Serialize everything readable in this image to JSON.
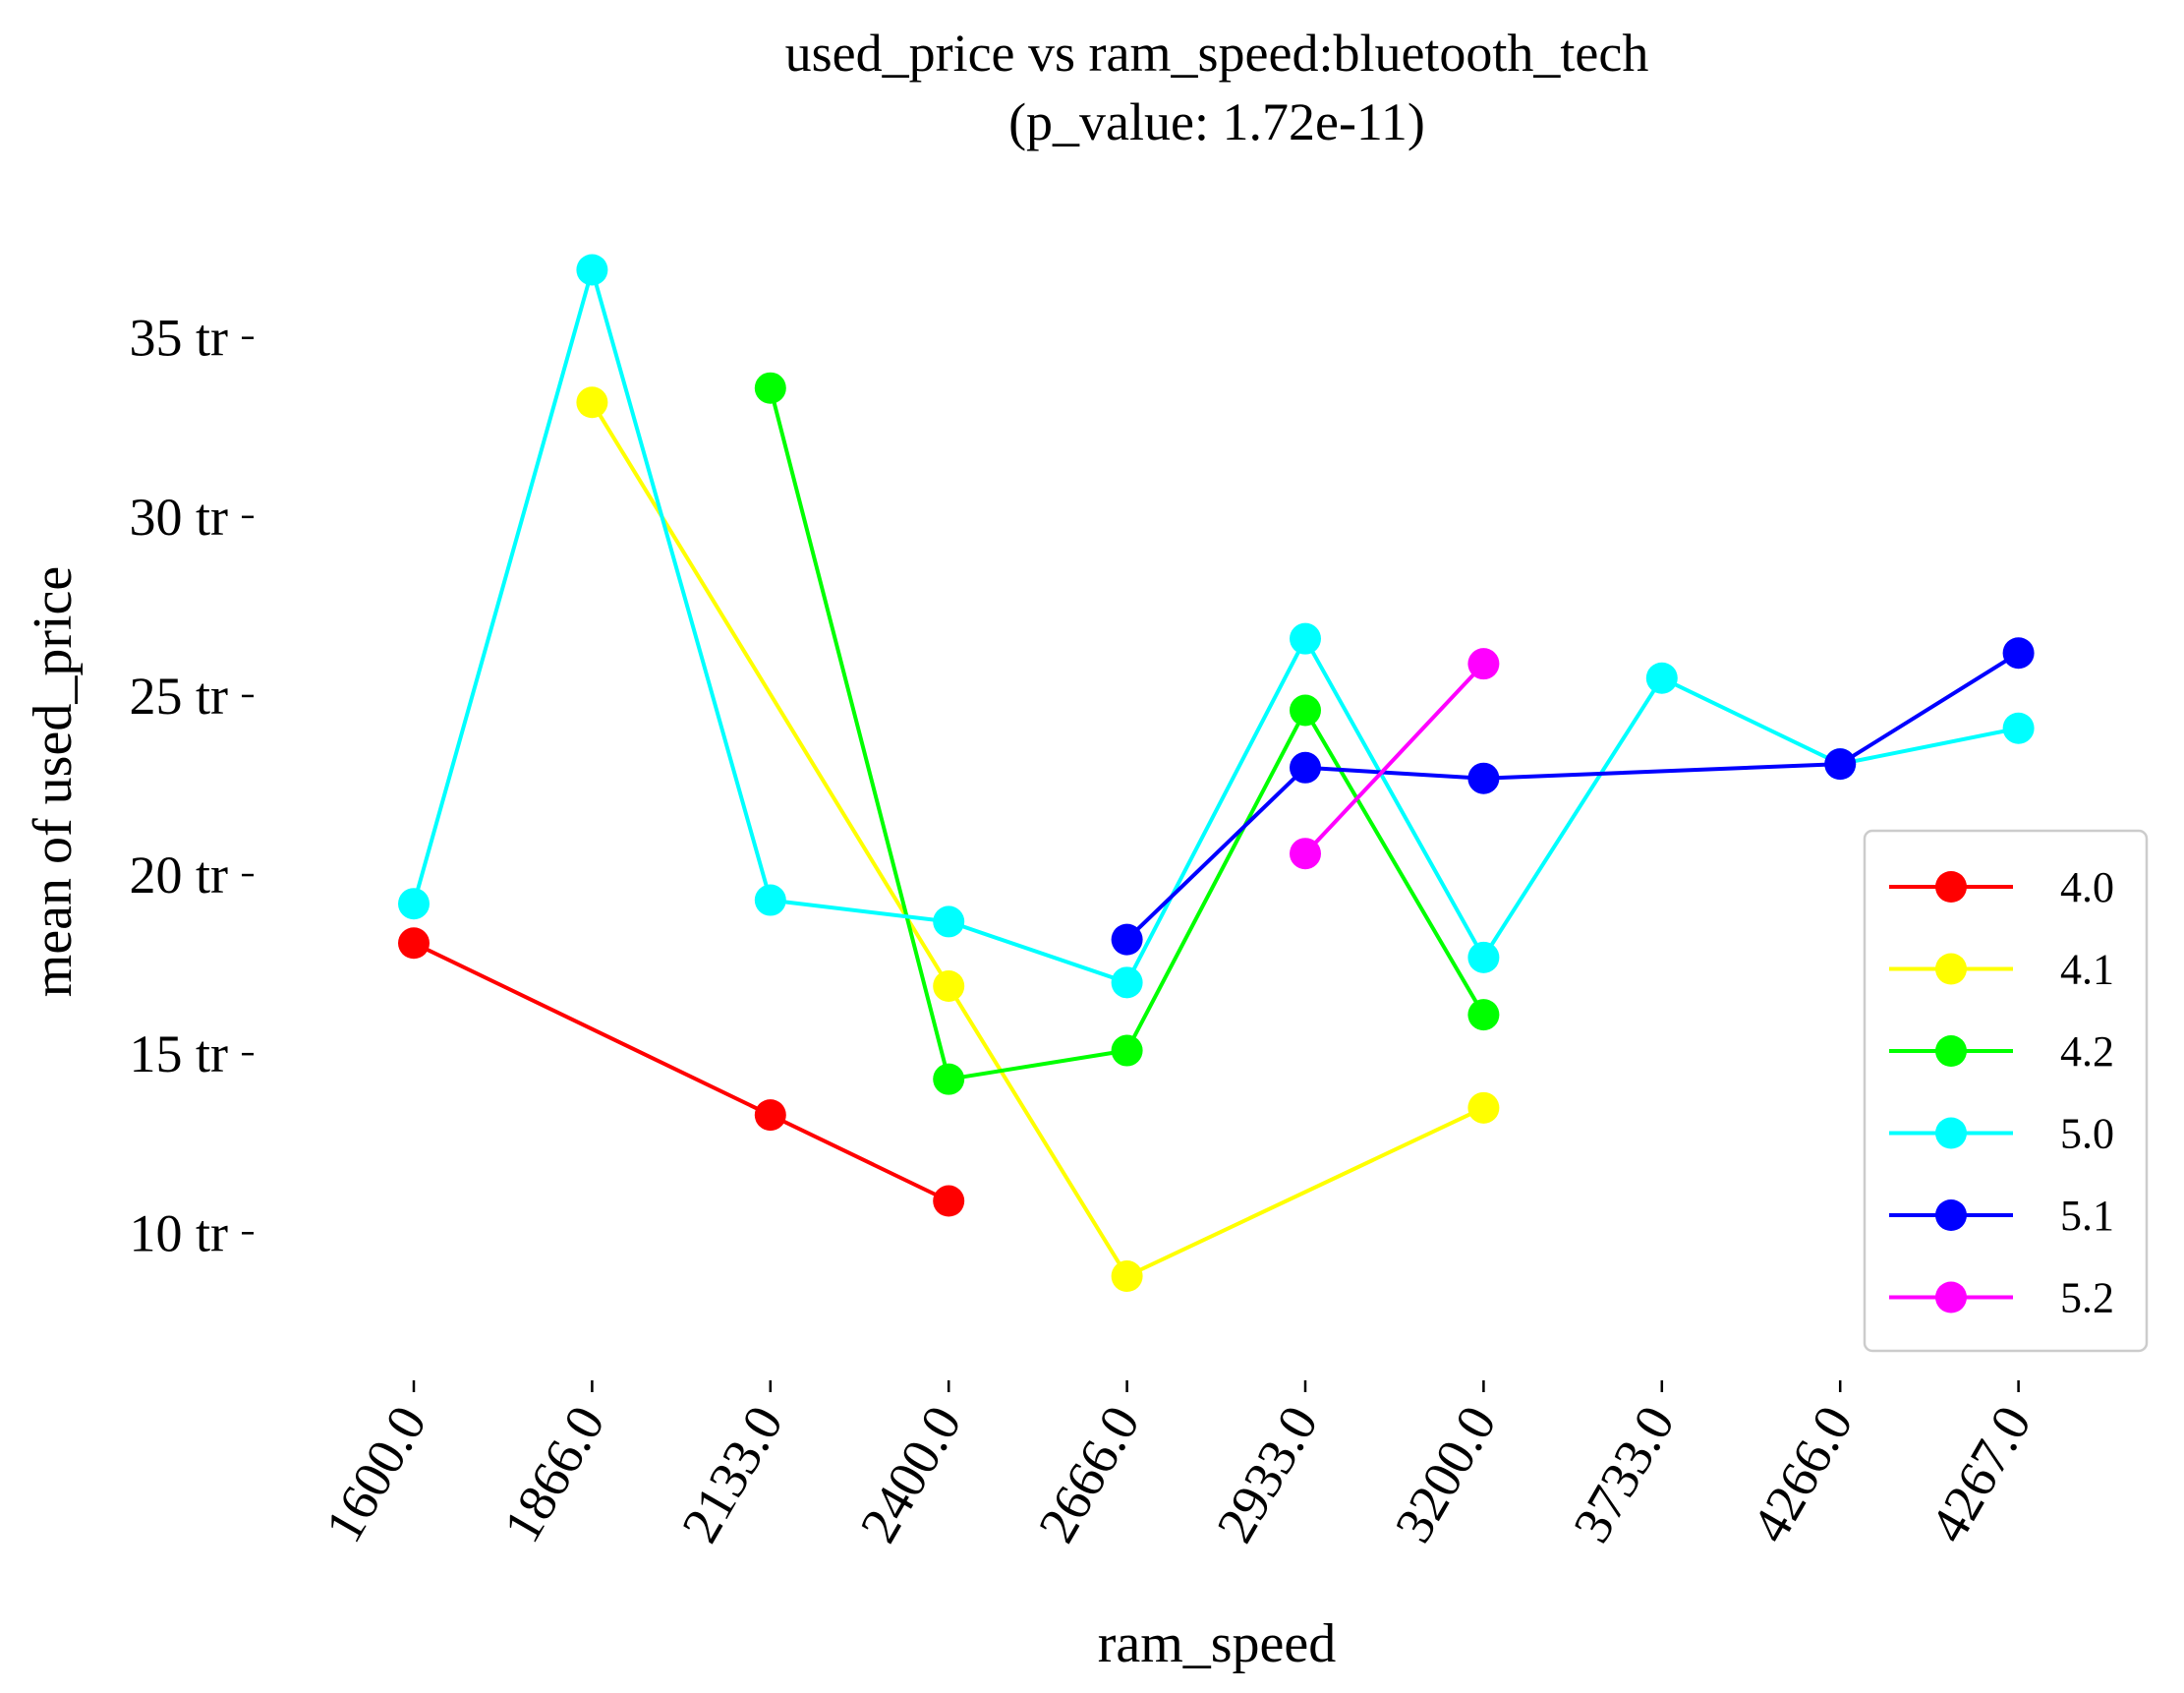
{
  "chart_data": {
    "type": "line",
    "title": "used_price vs ram_speed:bluetooth_tech",
    "subtitle": "(p_value: 1.72e-11)",
    "xlabel": "ram_speed",
    "ylabel": "mean of used_price",
    "categories": [
      "1600.0",
      "1866.0",
      "2133.0",
      "2400.0",
      "2666.0",
      "2933.0",
      "3200.0",
      "3733.0",
      "4266.0",
      "4267.0"
    ],
    "ylim": [
      6.0,
      39.0
    ],
    "yticks": [
      10,
      15,
      20,
      25,
      30,
      35
    ],
    "ytick_labels": [
      "10 tr",
      "15 tr",
      "20 tr",
      "25 tr",
      "30 tr",
      "35 tr"
    ],
    "grid": false,
    "legend_position": "lower-right",
    "series": [
      {
        "name": "4.0",
        "color": "#ff0000",
        "values": [
          18.1,
          null,
          13.3,
          10.9,
          null,
          null,
          null,
          null,
          null,
          null
        ]
      },
      {
        "name": "4.1",
        "color": "#ffff00",
        "values": [
          null,
          33.2,
          null,
          16.9,
          8.8,
          null,
          13.5,
          null,
          null,
          null
        ]
      },
      {
        "name": "4.2",
        "color": "#00ff00",
        "values": [
          null,
          null,
          33.6,
          14.3,
          15.1,
          24.6,
          16.1,
          null,
          null,
          null
        ]
      },
      {
        "name": "5.0",
        "color": "#00ffff",
        "values": [
          19.2,
          36.9,
          19.3,
          18.7,
          17.0,
          26.6,
          17.7,
          25.5,
          23.1,
          24.1
        ]
      },
      {
        "name": "5.1",
        "color": "#0000ff",
        "values": [
          null,
          null,
          null,
          null,
          18.2,
          23.0,
          22.7,
          null,
          23.1,
          26.2
        ]
      },
      {
        "name": "5.2",
        "color": "#ff00ff",
        "values": [
          null,
          null,
          null,
          null,
          null,
          20.6,
          25.9,
          null,
          null,
          null
        ]
      }
    ]
  }
}
